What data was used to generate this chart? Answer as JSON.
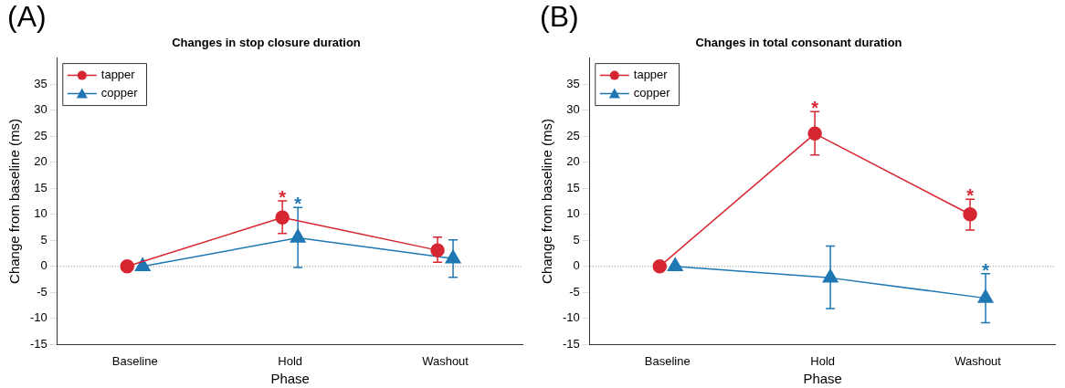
{
  "chart_data": [
    {
      "type": "line",
      "title": "Changes in stop closure duration",
      "xlabel": "Phase",
      "ylabel": "Change from baseline (ms)",
      "categories": [
        "Baseline",
        "Hold",
        "Washout"
      ],
      "series": [
        {
          "name": "tapper",
          "color": "#d62631",
          "marker": "circle",
          "values": [
            0,
            9.4,
            3.1
          ],
          "errors": [
            null,
            [
              6.3,
              12.6
            ],
            [
              0.8,
              5.6
            ]
          ],
          "value_labels": [
            null,
            "*",
            null
          ]
        },
        {
          "name": "copper",
          "color": "#1f77b4",
          "marker": "triangle",
          "values": [
            0,
            5.5,
            1.5
          ],
          "errors": [
            null,
            [
              -0.2,
              11.3
            ],
            [
              -2.1,
              5.1
            ]
          ],
          "value_labels": [
            null,
            "*",
            null
          ]
        }
      ],
      "ylim": [
        -15,
        40
      ],
      "yticks": [
        -15,
        -10,
        -5,
        0,
        5,
        10,
        15,
        20,
        25,
        30,
        35
      ],
      "grid": false,
      "legend": "top left",
      "line_style": "solid",
      "ref_lines": [
        {
          "axis": "y",
          "value": 0,
          "color": "#888888",
          "line_style": "dotted"
        }
      ],
      "annotations": [
        "(A)"
      ]
    },
    {
      "type": "line",
      "title": "Changes in total consonant duration",
      "xlabel": "Phase",
      "ylabel": "Change from baseline (ms)",
      "categories": [
        "Baseline",
        "Hold",
        "Washout"
      ],
      "series": [
        {
          "name": "tapper",
          "color": "#d62631",
          "marker": "circle",
          "values": [
            0,
            25.5,
            10
          ],
          "errors": [
            null,
            [
              21.4,
              29.7
            ],
            [
              7,
              12.9
            ]
          ],
          "value_labels": [
            null,
            "*",
            "*"
          ]
        },
        {
          "name": "copper",
          "color": "#1f77b4",
          "marker": "triangle",
          "values": [
            0,
            -2.2,
            -6.1
          ],
          "errors": [
            null,
            [
              -8.1,
              3.9
            ],
            [
              -10.8,
              -1.4
            ]
          ],
          "value_labels": [
            null,
            null,
            "*"
          ]
        }
      ],
      "ylim": [
        -15,
        40
      ],
      "yticks": [
        -15,
        -10,
        -5,
        0,
        5,
        10,
        15,
        20,
        25,
        30,
        35
      ],
      "grid": false,
      "legend": "top left",
      "line_style": "solid",
      "ref_lines": [
        {
          "axis": "y",
          "value": 0,
          "color": "#888888",
          "line_style": "dotted"
        }
      ],
      "annotations": [
        "(B)"
      ]
    }
  ]
}
